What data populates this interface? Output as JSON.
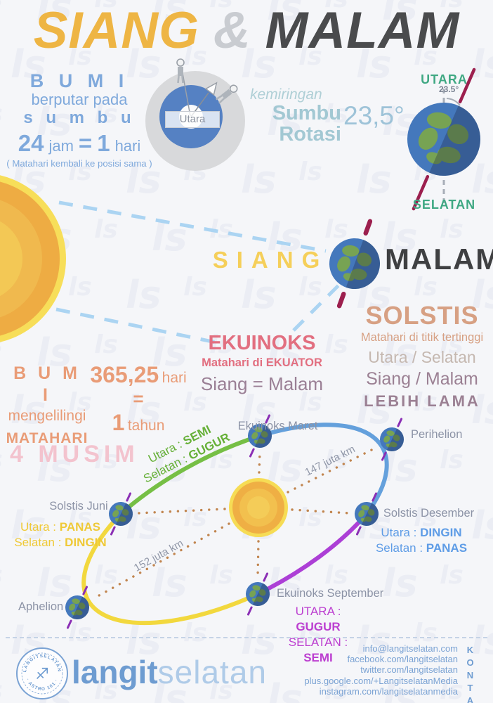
{
  "title": {
    "word1": "SIANG",
    "amp": "&",
    "word2": "MALAM"
  },
  "rotation": {
    "heading": "B U M I",
    "sub1": "berputar pada",
    "sub2": "s u m b u",
    "value": "24",
    "value_unit": "jam",
    "equals": "=",
    "result": "1",
    "result_unit": "hari",
    "note": "( Matahari kembali ke posisi sama )",
    "hub_label": "Utara"
  },
  "tilt": {
    "caption": "kemiringan",
    "line1": "Sumbu",
    "line2": "Rotasi",
    "angle": "23,5°",
    "angle_label": "23.5°",
    "north": "UTARA",
    "south": "SELATAN"
  },
  "day_night": {
    "day": "SIANG",
    "night": "MALAM"
  },
  "solstis": {
    "heading": "SOLSTIS",
    "line1": "Matahari di titik tertinggi",
    "line2": "Utara / Selatan",
    "line3": "Siang / Malam",
    "line4": "LEBIH LAMA"
  },
  "ekuinoks": {
    "heading": "EKUINOKS",
    "line1": "Matahari di EKUATOR",
    "line2": "Siang = Malam"
  },
  "revolution": {
    "heading": "B U M I",
    "sub1": "mengelilingi",
    "sub2": "MATAHARI",
    "value": "365,25",
    "value_unit": "hari",
    "equals": "=",
    "result": "1",
    "result_unit": "tahun"
  },
  "seasons_title": "4 MUSIM",
  "orbit": {
    "labels": {
      "maret": "Ekuinoks Maret",
      "perihelion": "Perihelion",
      "desember": "Solstis Desember",
      "september": "Ekuinoks September",
      "aphelion": "Aphelion",
      "juni": "Solstis Juni"
    },
    "seasons": {
      "maret": [
        {
          "label": "Utara :",
          "value": "SEMI"
        },
        {
          "label": "Selatan :",
          "value": "GUGUR"
        }
      ],
      "juni": [
        {
          "label": "Utara :",
          "value": "PANAS"
        },
        {
          "label": "Selatan :",
          "value": "DINGIN"
        }
      ],
      "desember": [
        {
          "label": "Utara :",
          "value": "DINGIN"
        },
        {
          "label": "Selatan :",
          "value": "PANAS"
        }
      ],
      "september": [
        {
          "label": "UTARA :",
          "value": "GUGUR"
        },
        {
          "label": "SELATAN :",
          "value": "SEMI"
        }
      ]
    },
    "distances": {
      "perihelion": "147 juta km",
      "aphelion": "152 juta km"
    }
  },
  "footer": {
    "brand": {
      "bold": "langit",
      "light": "selatan"
    },
    "badge": {
      "top": "LANGITSELATAN",
      "bottom": "· ASTRO 101 ·",
      "glyph": "♐"
    },
    "kontak": "KONTAK",
    "contacts": [
      "info@langitselatan.com",
      "facebook.com/langitselatan",
      "twitter.com/langitselatan",
      "plus.google.com/+LangitselatanMedia",
      "instagram.com/langitselatanmedia"
    ]
  },
  "colors": {
    "title_yellow": "#EEB544",
    "title_gray": "#C9CCD1",
    "title_dark": "#4A4B4D",
    "info_blue": "#7FA9DC",
    "teal": "#A2C8D3",
    "angle_blue": "#9EC3D8",
    "green": "#3FA883",
    "maroon": "#9C1F4E",
    "siang_yellow": "#F5CF5A",
    "malam_dark": "#3F4042",
    "solstis_tan": "#D7A083",
    "warm_gray": "#C5B8B0",
    "mauve": "#9B8093",
    "ekuinoks_pink": "#E26F80",
    "salmon": "#E99C77",
    "musim_pink": "#F3C3CE",
    "orbit_green": "#76BF45",
    "orbit_yellow": "#F2D83E",
    "orbit_blue": "#64A0DC",
    "orbit_purple": "#AC3FD6",
    "label_gray": "#8C93A6",
    "dotted_brown": "#C1854F",
    "juni_yellow": "#EFC937",
    "desember_blue": "#5E9CE6",
    "september_magenta": "#BC3FD0",
    "maret_green": "#66B038",
    "footer_blue": "#6E9CD1",
    "footer_light_blue": "#AFCBE8"
  },
  "watermark_glyph": "ls"
}
